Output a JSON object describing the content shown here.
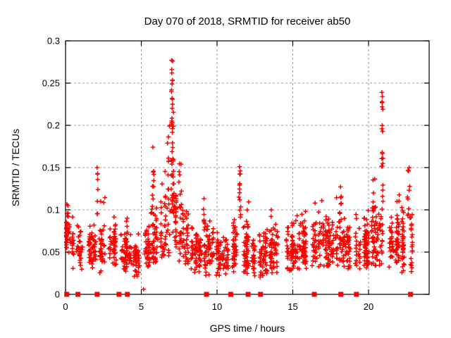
{
  "chart_data": {
    "type": "scatter",
    "title": "Day 070 of 2018, SRMTID for receiver ab50",
    "xlabel": "GPS time / hours",
    "ylabel": "SRMTID / TECUs",
    "xlim": [
      0,
      24
    ],
    "ylim": [
      0,
      0.3
    ],
    "xticks": [
      0,
      5,
      10,
      15,
      20
    ],
    "xtick_labels": [
      "0",
      "5",
      "10",
      "15",
      "20"
    ],
    "yticks": [
      0,
      0.05,
      0.1,
      0.15,
      0.2,
      0.25,
      0.3
    ],
    "ytick_labels": [
      "0",
      "0.05",
      "0.1",
      "0.15",
      "0.2",
      "0.25",
      "0.3"
    ],
    "grid": true,
    "grid_style": "dashed",
    "grid_color": "#9a9a9a",
    "legend": "none",
    "series": [
      {
        "name": "SRMTID scatter",
        "marker": "plus",
        "color": "#ff0000",
        "x_range_hours": [
          0.05,
          22.9
        ],
        "y_bulk_range": [
          0.02,
          0.11
        ],
        "y_max_observed": 0.277,
        "generator": {
          "seed": 20180070,
          "segments_format": "[x_start, x_end, count, y_min, y_mode, y_max]",
          "segments": [
            [
              0.05,
              0.45,
              40,
              0.045,
              0.075,
              0.107
            ],
            [
              0.45,
              1.2,
              45,
              0.028,
              0.055,
              0.095
            ],
            [
              1.2,
              2.0,
              55,
              0.028,
              0.055,
              0.1
            ],
            [
              2.0,
              2.6,
              40,
              0.025,
              0.05,
              0.115
            ],
            [
              2.6,
              3.4,
              50,
              0.03,
              0.055,
              0.095
            ],
            [
              3.4,
              4.2,
              55,
              0.025,
              0.05,
              0.1
            ],
            [
              4.2,
              5.0,
              55,
              0.02,
              0.042,
              0.08
            ],
            [
              5.0,
              5.6,
              40,
              0.03,
              0.055,
              0.11
            ],
            [
              5.6,
              6.3,
              45,
              0.035,
              0.065,
              0.145
            ],
            [
              6.3,
              6.9,
              45,
              0.04,
              0.07,
              0.16
            ],
            [
              6.9,
              7.3,
              30,
              0.05,
              0.09,
              0.15
            ],
            [
              7.3,
              8.1,
              55,
              0.035,
              0.065,
              0.135
            ],
            [
              8.1,
              9.0,
              65,
              0.025,
              0.048,
              0.09
            ],
            [
              9.0,
              9.8,
              60,
              0.022,
              0.048,
              0.105
            ],
            [
              9.8,
              10.8,
              70,
              0.02,
              0.045,
              0.085
            ],
            [
              10.8,
              11.4,
              45,
              0.025,
              0.05,
              0.095
            ],
            [
              11.4,
              12.2,
              55,
              0.022,
              0.05,
              0.11
            ],
            [
              12.2,
              13.2,
              70,
              0.02,
              0.045,
              0.085
            ],
            [
              13.2,
              14.2,
              70,
              0.025,
              0.05,
              0.1
            ],
            [
              14.2,
              15.2,
              70,
              0.028,
              0.05,
              0.092
            ],
            [
              15.2,
              16.2,
              70,
              0.03,
              0.052,
              0.1
            ],
            [
              16.2,
              17.2,
              70,
              0.03,
              0.058,
              0.112
            ],
            [
              17.2,
              18.2,
              70,
              0.03,
              0.06,
              0.12
            ],
            [
              18.2,
              19.2,
              70,
              0.03,
              0.058,
              0.115
            ],
            [
              19.2,
              20.2,
              70,
              0.03,
              0.057,
              0.125
            ],
            [
              20.2,
              21.2,
              70,
              0.03,
              0.065,
              0.135
            ],
            [
              21.2,
              22.2,
              70,
              0.03,
              0.06,
              0.12
            ],
            [
              22.2,
              22.9,
              55,
              0.025,
              0.058,
              0.13
            ]
          ],
          "spikes_format": "[x_center, x_halfwidth, count, y_min, y_max]",
          "spikes": [
            [
              2.1,
              0.06,
              7,
              0.095,
              0.148
            ],
            [
              5.8,
              0.1,
              8,
              0.11,
              0.175
            ],
            [
              6.8,
              0.08,
              10,
              0.1,
              0.2
            ],
            [
              7.05,
              0.1,
              40,
              0.095,
              0.27
            ],
            [
              7.55,
              0.12,
              10,
              0.1,
              0.158
            ],
            [
              9.15,
              0.07,
              6,
              0.085,
              0.118
            ],
            [
              11.5,
              0.09,
              12,
              0.09,
              0.148
            ],
            [
              18.15,
              0.09,
              9,
              0.085,
              0.133
            ],
            [
              20.35,
              0.09,
              8,
              0.09,
              0.138
            ],
            [
              20.9,
              0.06,
              16,
              0.1,
              0.235
            ],
            [
              22.65,
              0.12,
              10,
              0.08,
              0.148
            ]
          ]
        },
        "feature_points": [
          [
            7.0,
            0.277
          ],
          [
            7.07,
            0.276
          ],
          [
            7.02,
            0.262
          ],
          [
            7.05,
            0.253
          ],
          [
            6.99,
            0.24
          ],
          [
            7.03,
            0.232
          ],
          [
            7.06,
            0.225
          ],
          [
            7.01,
            0.205
          ],
          [
            20.88,
            0.239
          ],
          [
            20.91,
            0.234
          ],
          [
            20.89,
            0.228
          ],
          [
            20.92,
            0.193
          ],
          [
            20.9,
            0.168
          ],
          [
            20.95,
            0.161
          ],
          [
            2.08,
            0.15
          ],
          [
            11.48,
            0.151
          ],
          [
            11.53,
            0.146
          ],
          [
            22.68,
            0.15
          ],
          [
            5.15,
            0.006
          ],
          [
            0.15,
            0.105
          ]
        ]
      },
      {
        "name": "flag markers",
        "marker": "filled-square",
        "color": "#ff0000",
        "y": 0,
        "x_values": [
          0.08,
          0.82,
          2.09,
          3.53,
          4.08,
          9.3,
          10.9,
          12.05,
          12.87,
          16.42,
          18.17,
          19.2,
          22.77
        ]
      }
    ]
  },
  "colors": {
    "marker": "#ff0000",
    "axis": "#000000",
    "grid": "#9a9a9a",
    "background": "#ffffff"
  }
}
